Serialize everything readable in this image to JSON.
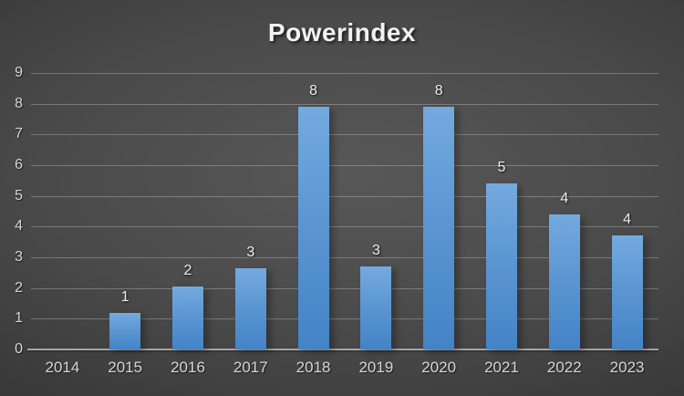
{
  "title": "Powerindex",
  "colors": {
    "background_center": "#585858",
    "background_edge": "#262626",
    "bar_gradient_top": "#73aadf",
    "bar_gradient_bottom": "#4383c6",
    "gridline": "rgba(255,255,255,0.26)",
    "axis_line": "#a6a6a6",
    "axis_text": "#d6d6d6",
    "data_label_text": "#ededed",
    "title_text": "#f2f2f2"
  },
  "chart_data": {
    "type": "bar",
    "title": "Powerindex",
    "categories": [
      "2014",
      "2015",
      "2016",
      "2017",
      "2018",
      "2019",
      "2020",
      "2021",
      "2022",
      "2023"
    ],
    "values": [
      0,
      1.2,
      2.05,
      2.65,
      7.9,
      2.7,
      7.9,
      5.4,
      4.4,
      3.7
    ],
    "data_labels": [
      "",
      "1",
      "2",
      "3",
      "8",
      "3",
      "8",
      "5",
      "4",
      "4"
    ],
    "xlabel": "",
    "ylabel": "",
    "ylim": [
      0,
      9
    ],
    "yticks": [
      0,
      1,
      2,
      3,
      4,
      5,
      6,
      7,
      8,
      9
    ],
    "grid": true,
    "legend": false,
    "legend_position": "none"
  }
}
